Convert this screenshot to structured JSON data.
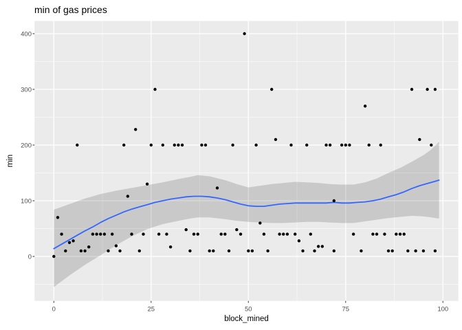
{
  "chart_data": {
    "type": "scatter",
    "title": "min of gas prices",
    "xlabel": "block_mined",
    "ylabel": "min",
    "x_ticks": [
      0,
      25,
      50,
      75,
      100
    ],
    "y_ticks": [
      0,
      100,
      200,
      300,
      400
    ],
    "x_minor_ticks": [
      12.5,
      37.5,
      62.5,
      87.5
    ],
    "y_minor_ticks": [
      -50,
      50,
      150,
      250,
      350
    ],
    "xlim": [
      -4.95,
      103.95
    ],
    "ylim": [
      -79.85,
      422.85
    ],
    "grid": true,
    "legend": "none",
    "style": {
      "panel_bg": "#EBEBEB",
      "grid_color": "#FFFFFF",
      "point_color": "#000000",
      "line_color": "#3366FF",
      "ribbon_color": "#000000",
      "ribbon_opacity": 0.14,
      "tick_label_color": "#4D4D4D",
      "tick_mark_color": "#333333",
      "title_color": "#000000"
    },
    "points": [
      [
        0,
        0
      ],
      [
        1,
        70
      ],
      [
        2,
        40
      ],
      [
        3,
        10
      ],
      [
        4,
        25
      ],
      [
        5,
        28
      ],
      [
        6,
        200
      ],
      [
        7,
        10
      ],
      [
        8,
        10
      ],
      [
        9,
        17
      ],
      [
        10,
        40
      ],
      [
        11,
        40
      ],
      [
        12,
        40
      ],
      [
        13,
        40
      ],
      [
        14,
        10
      ],
      [
        15,
        40
      ],
      [
        16,
        19
      ],
      [
        17,
        10
      ],
      [
        18,
        200
      ],
      [
        19,
        108
      ],
      [
        20,
        40
      ],
      [
        21,
        228
      ],
      [
        22,
        10
      ],
      [
        23,
        40
      ],
      [
        24,
        130
      ],
      [
        25,
        200
      ],
      [
        26,
        300
      ],
      [
        27,
        40
      ],
      [
        28,
        200
      ],
      [
        29,
        40
      ],
      [
        30,
        17
      ],
      [
        31,
        200
      ],
      [
        32,
        200
      ],
      [
        33,
        200
      ],
      [
        34,
        48
      ],
      [
        35,
        10
      ],
      [
        36,
        40
      ],
      [
        37,
        40
      ],
      [
        38,
        200
      ],
      [
        39,
        200
      ],
      [
        40,
        10
      ],
      [
        41,
        10
      ],
      [
        42,
        123
      ],
      [
        43,
        40
      ],
      [
        44,
        40
      ],
      [
        45,
        10
      ],
      [
        46,
        200
      ],
      [
        47,
        48
      ],
      [
        48,
        40
      ],
      [
        49,
        400
      ],
      [
        50,
        10
      ],
      [
        51,
        10
      ],
      [
        52,
        200
      ],
      [
        53,
        60
      ],
      [
        54,
        40
      ],
      [
        55,
        10
      ],
      [
        56,
        300
      ],
      [
        57,
        210
      ],
      [
        58,
        40
      ],
      [
        59,
        40
      ],
      [
        60,
        40
      ],
      [
        61,
        200
      ],
      [
        62,
        40
      ],
      [
        63,
        28
      ],
      [
        64,
        10
      ],
      [
        65,
        200
      ],
      [
        66,
        40
      ],
      [
        67,
        10
      ],
      [
        68,
        18
      ],
      [
        69,
        18
      ],
      [
        70,
        200
      ],
      [
        71,
        200
      ],
      [
        72,
        100
      ],
      [
        72,
        10
      ],
      [
        74,
        200
      ],
      [
        75,
        200
      ],
      [
        76,
        200
      ],
      [
        77,
        40
      ],
      [
        79,
        10
      ],
      [
        80,
        270
      ],
      [
        81,
        200
      ],
      [
        82,
        40
      ],
      [
        83,
        40
      ],
      [
        84,
        200
      ],
      [
        85,
        40
      ],
      [
        86,
        10
      ],
      [
        87,
        10
      ],
      [
        88,
        40
      ],
      [
        89,
        40
      ],
      [
        90,
        40
      ],
      [
        91,
        10
      ],
      [
        92,
        300
      ],
      [
        93,
        10
      ],
      [
        94,
        210
      ],
      [
        95,
        10
      ],
      [
        96,
        300
      ],
      [
        97,
        200
      ],
      [
        98,
        10
      ],
      [
        98,
        300
      ]
    ],
    "smooth_line": [
      [
        0,
        14
      ],
      [
        2,
        22
      ],
      [
        4,
        30
      ],
      [
        6,
        38
      ],
      [
        8,
        46
      ],
      [
        10,
        53
      ],
      [
        12,
        61
      ],
      [
        14,
        68
      ],
      [
        16,
        74
      ],
      [
        18,
        80
      ],
      [
        20,
        85
      ],
      [
        22,
        89
      ],
      [
        24,
        93
      ],
      [
        26,
        97
      ],
      [
        28,
        100
      ],
      [
        30,
        103
      ],
      [
        32,
        105
      ],
      [
        34,
        107
      ],
      [
        36,
        108
      ],
      [
        38,
        108
      ],
      [
        40,
        107
      ],
      [
        42,
        105
      ],
      [
        44,
        102
      ],
      [
        46,
        98
      ],
      [
        48,
        94
      ],
      [
        50,
        91
      ],
      [
        52,
        90
      ],
      [
        54,
        90
      ],
      [
        56,
        92
      ],
      [
        58,
        94
      ],
      [
        60,
        95
      ],
      [
        62,
        96
      ],
      [
        64,
        96
      ],
      [
        66,
        96
      ],
      [
        68,
        96
      ],
      [
        70,
        96
      ],
      [
        72,
        97
      ],
      [
        74,
        96
      ],
      [
        76,
        96
      ],
      [
        78,
        97
      ],
      [
        80,
        98
      ],
      [
        82,
        100
      ],
      [
        84,
        103
      ],
      [
        86,
        107
      ],
      [
        88,
        111
      ],
      [
        90,
        116
      ],
      [
        92,
        122
      ],
      [
        94,
        127
      ],
      [
        96,
        131
      ],
      [
        98,
        135
      ],
      [
        99,
        137
      ]
    ],
    "ribbon_upper": [
      [
        0,
        84
      ],
      [
        4,
        94
      ],
      [
        8,
        104
      ],
      [
        12,
        112
      ],
      [
        16,
        118
      ],
      [
        20,
        123
      ],
      [
        24,
        128
      ],
      [
        28,
        133
      ],
      [
        32,
        139
      ],
      [
        35,
        143
      ],
      [
        37,
        146
      ],
      [
        40,
        144
      ],
      [
        44,
        137
      ],
      [
        47,
        130
      ],
      [
        50,
        124
      ],
      [
        53,
        127
      ],
      [
        56,
        130
      ],
      [
        59,
        132
      ],
      [
        62,
        134
      ],
      [
        65,
        133
      ],
      [
        68,
        132
      ],
      [
        71,
        130
      ],
      [
        74,
        129
      ],
      [
        77,
        129
      ],
      [
        80,
        133
      ],
      [
        83,
        140
      ],
      [
        86,
        150
      ],
      [
        89,
        159
      ],
      [
        92,
        170
      ],
      [
        95,
        182
      ],
      [
        97,
        192
      ],
      [
        99,
        206
      ]
    ],
    "ribbon_lower": [
      [
        0,
        -55
      ],
      [
        4,
        -34
      ],
      [
        8,
        -15
      ],
      [
        12,
        2
      ],
      [
        16,
        20
      ],
      [
        20,
        36
      ],
      [
        24,
        49
      ],
      [
        28,
        58
      ],
      [
        32,
        64
      ],
      [
        35,
        68
      ],
      [
        37,
        70
      ],
      [
        40,
        70
      ],
      [
        44,
        67
      ],
      [
        47,
        64
      ],
      [
        50,
        62
      ],
      [
        53,
        61
      ],
      [
        56,
        60
      ],
      [
        59,
        60
      ],
      [
        62,
        61
      ],
      [
        65,
        62
      ],
      [
        68,
        62
      ],
      [
        71,
        61
      ],
      [
        74,
        60
      ],
      [
        77,
        60
      ],
      [
        80,
        63
      ],
      [
        83,
        66
      ],
      [
        86,
        69
      ],
      [
        89,
        71
      ],
      [
        92,
        73
      ],
      [
        95,
        72
      ],
      [
        97,
        70
      ],
      [
        99,
        68
      ]
    ]
  }
}
